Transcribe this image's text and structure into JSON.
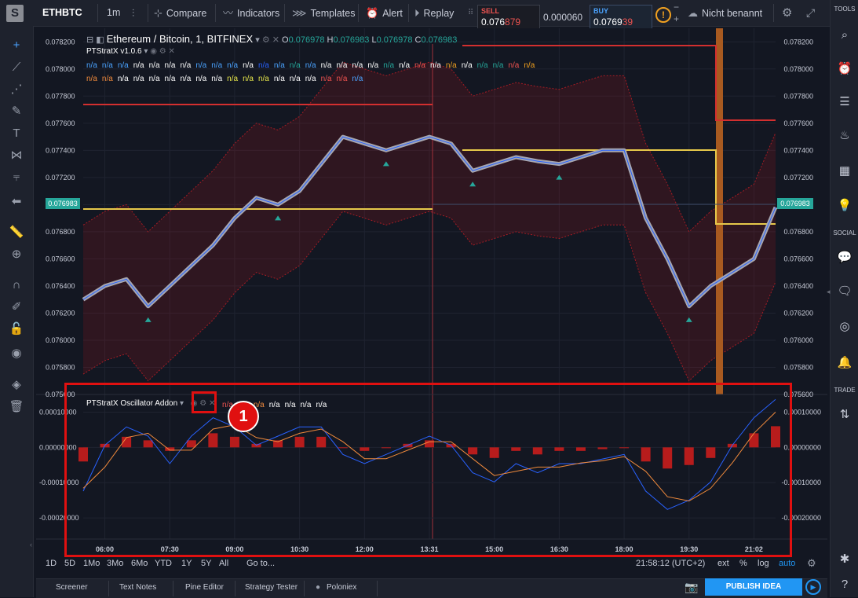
{
  "header": {
    "symbol": "ETHBTC",
    "interval": "1m",
    "compare": "Compare",
    "indicators": "Indicators",
    "templates": "Templates",
    "alert": "Alert",
    "replay": "Replay",
    "sell_label": "SELL",
    "sell_main": "0.076",
    "sell_tail": "879",
    "spread": "0.000060",
    "buy_label": "BUY",
    "buy_main": "0.0769",
    "buy_tail": "39",
    "minus": "−",
    "plus": "+",
    "layout_name": "Nicht benannt"
  },
  "right_sidebar": {
    "tools": "TOOLS",
    "social": "SOCIAL",
    "trade": "TRADE"
  },
  "legend": {
    "title": "Ethereum / Bitcoin, 1, BITFINEX",
    "o_label": "O",
    "o": "0.076978",
    "h_label": "H",
    "h": "0.076983",
    "l_label": "L",
    "l": "0.076978",
    "c_label": "C",
    "c": "0.076983",
    "indicator": "PTStratX v1.0.6",
    "osc_indicator": "PTStratX Oscillator Addon",
    "na": "n/a"
  },
  "colors": {
    "up": "#26a69a",
    "down": "#ef5350",
    "yellow": "#e6c84a",
    "red": "#d32f2f",
    "blue": "#2962ff",
    "orange": "#f08a3c",
    "grey": "#a6a6b0"
  },
  "main_axis": {
    "labels": [
      "0.078200",
      "0.078000",
      "0.077800",
      "0.077600",
      "0.077400",
      "0.077200",
      "0.077000",
      "0.076800",
      "0.076600",
      "0.076400",
      "0.076200",
      "0.076000",
      "0.075800",
      "0.075600"
    ],
    "last_price": "0.076983"
  },
  "osc_axis": {
    "labels": [
      "0.00010000",
      "0.00000000",
      "-0.00010000",
      "-0.00020000"
    ]
  },
  "time_axis": {
    "labels": [
      "06:00",
      "07:30",
      "09:00",
      "10:30",
      "12:00",
      "13:31",
      "15:00",
      "16:30",
      "18:00",
      "19:30",
      "21:02"
    ]
  },
  "bottom": {
    "ranges": [
      "1D",
      "5D",
      "1Mo",
      "3Mo",
      "6Mo",
      "YTD",
      "1Y",
      "5Y",
      "All"
    ],
    "goto": "Go to...",
    "time": "21:58:12 (UTC+2)",
    "ext": "ext",
    "pct": "%",
    "log": "log",
    "auto": "auto"
  },
  "tabs": [
    "Screener",
    "Text Notes",
    "Pine Editor",
    "Strategy Tester",
    "Poloniex"
  ],
  "publish": "PUBLISH IDEA",
  "annotation_number": "1",
  "chart_data": {
    "type": "line",
    "title": "Ethereum / Bitcoin, 1, BITFINEX",
    "x": [
      "05:30",
      "06:00",
      "06:30",
      "07:00",
      "07:30",
      "08:00",
      "08:30",
      "09:00",
      "09:30",
      "10:00",
      "10:30",
      "11:00",
      "11:30",
      "12:00",
      "12:30",
      "13:00",
      "13:31",
      "14:00",
      "14:30",
      "15:00",
      "15:30",
      "16:00",
      "16:30",
      "17:00",
      "17:30",
      "18:00",
      "18:30",
      "19:00",
      "19:30",
      "20:00",
      "20:30",
      "21:02",
      "21:30"
    ],
    "series": [
      {
        "name": "Ethereum / Bitcoin",
        "values": [
          0.0763,
          0.0764,
          0.07645,
          0.07625,
          0.0764,
          0.07655,
          0.0767,
          0.0769,
          0.07705,
          0.077,
          0.0771,
          0.0773,
          0.0775,
          0.07745,
          0.0774,
          0.07745,
          0.0775,
          0.07745,
          0.07725,
          0.0773,
          0.07735,
          0.07732,
          0.0773,
          0.07735,
          0.0774,
          0.0774,
          0.0769,
          0.0766,
          0.07625,
          0.0764,
          0.0765,
          0.0766,
          0.07698
        ]
      }
    ],
    "ylim": [
      0.0756,
      0.0783
    ],
    "osc_series": [
      {
        "values": [
          -4e-05,
          1e-05,
          3e-05,
          2e-05,
          -1e-05,
          2e-05,
          4e-05,
          3e-05,
          1e-05,
          2e-05,
          3e-05,
          3e-05,
          0.0,
          -1e-05,
          0.0,
          1e-05,
          2e-05,
          1e-05,
          -2e-05,
          -3e-05,
          -1e-05,
          -2e-05,
          -1e-05,
          -1e-05,
          -5e-06,
          0.0,
          -4e-05,
          -6e-05,
          -5e-05,
          -3e-05,
          1e-05,
          4e-05,
          6e-05
        ]
      }
    ],
    "osc_ylim": [
      -0.00026,
      0.00015
    ]
  }
}
